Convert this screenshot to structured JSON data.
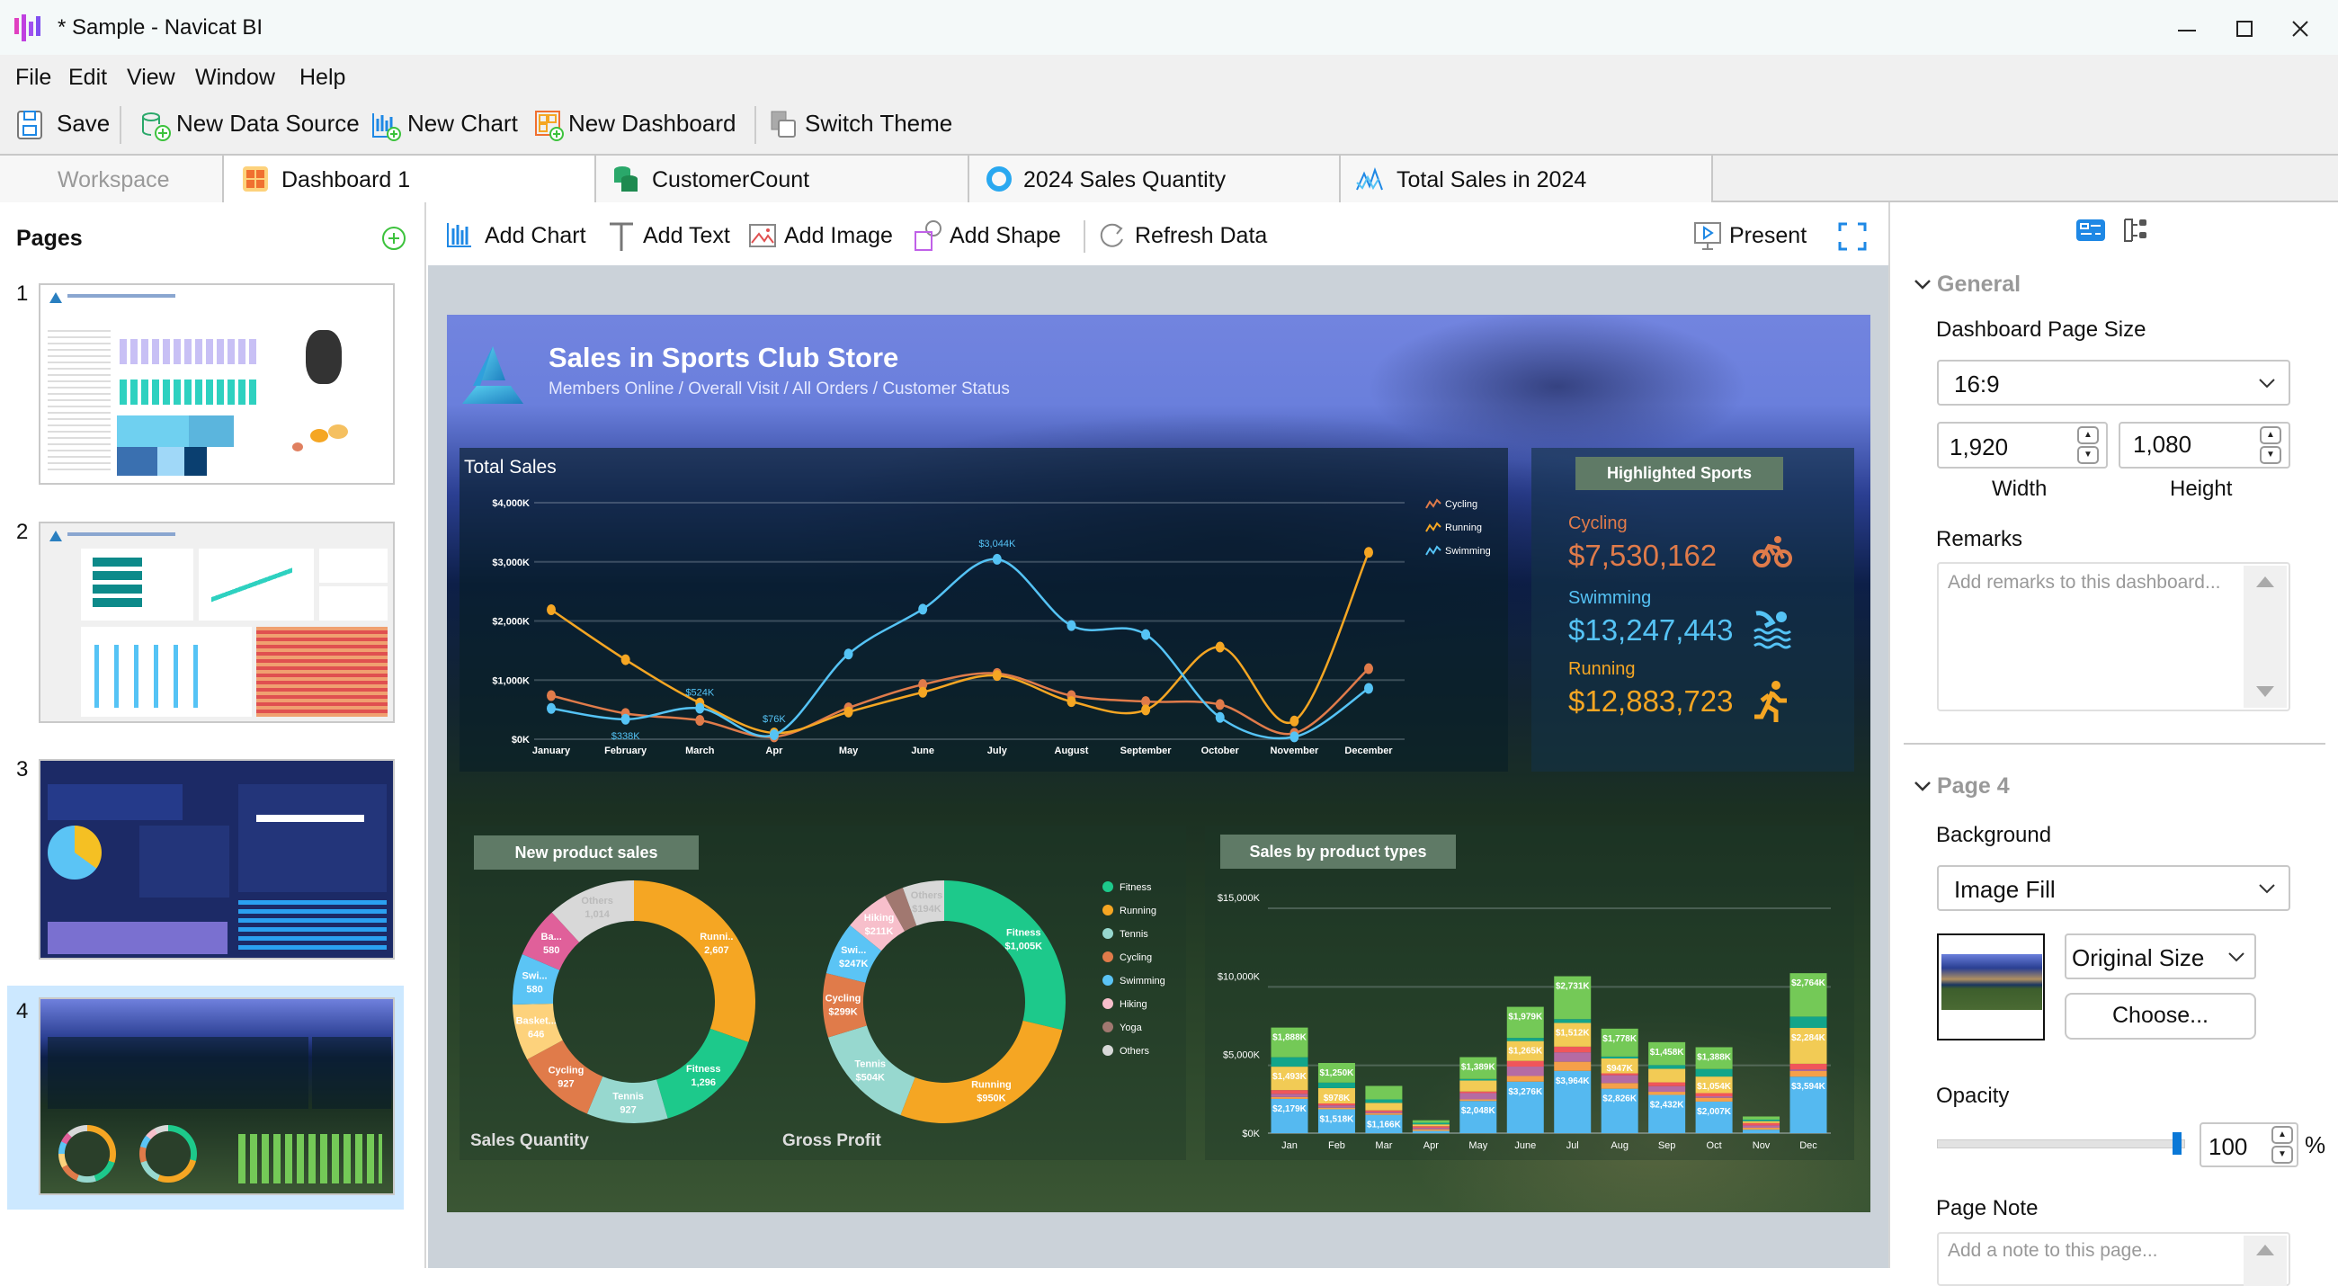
{
  "window": {
    "title": "* Sample - Navicat BI"
  },
  "menu": [
    "File",
    "Edit",
    "View",
    "Window",
    "Help"
  ],
  "toolbar": {
    "save": "Save",
    "new_data_source": "New Data Source",
    "new_chart": "New Chart",
    "new_dashboard": "New Dashboard",
    "switch_theme": "Switch Theme"
  },
  "tabs": [
    {
      "label": "Workspace",
      "icon": "none"
    },
    {
      "label": "Dashboard 1",
      "icon": "dashboard-icon",
      "active": true
    },
    {
      "label": "CustomerCount",
      "icon": "database-icon"
    },
    {
      "label": "2024 Sales Quantity",
      "icon": "donut-chart-icon"
    },
    {
      "label": "Total Sales in 2024",
      "icon": "line-chart-icon"
    }
  ],
  "pages": {
    "title": "Pages",
    "items": [
      "1",
      "2",
      "3",
      "4"
    ],
    "selected": "4"
  },
  "canvas_toolbar": {
    "add_chart": "Add Chart",
    "add_text": "Add Text",
    "add_image": "Add Image",
    "add_shape": "Add Shape",
    "refresh": "Refresh Data",
    "present": "Present"
  },
  "dashboard": {
    "title": "Sales in Sports Club Store",
    "subtitle": "Members Online / Overall Visit / All Orders / Customer Status",
    "highlight": {
      "title": "Highlighted Sports",
      "items": [
        {
          "label": "Cycling",
          "value": "$7,530,162",
          "color": "#e07b4a",
          "icon": "bicycle-icon"
        },
        {
          "label": "Swimming",
          "value": "$13,247,443",
          "color": "#55c3f5",
          "icon": "swimming-icon"
        },
        {
          "label": "Running",
          "value": "$12,883,723",
          "color": "#f5a623",
          "icon": "running-icon"
        }
      ]
    },
    "new_product_title": "New product sales",
    "bar_title": "Sales by product types"
  },
  "chart_data": [
    {
      "type": "line",
      "title": "Total Sales",
      "categories": [
        "January",
        "February",
        "March",
        "Apr",
        "May",
        "June",
        "July",
        "August",
        "September",
        "October",
        "November",
        "December"
      ],
      "yticks": [
        "$0K",
        "$1,000K",
        "$2,000K",
        "$3,000K",
        "$4,000K"
      ],
      "ylim": [
        0,
        4000
      ],
      "grid": true,
      "legend": "top-right",
      "series": [
        {
          "name": "Cycling",
          "color": "#e07b4a",
          "values": [
            738,
            435,
            319,
            40,
            531,
            925,
            1113,
            738,
            637,
            587,
            101,
            1193
          ]
        },
        {
          "name": "Running",
          "color": "#f5a623",
          "values": [
            2190,
            1345,
            612,
            106,
            460,
            794,
            1077,
            637,
            496,
            1558,
            308,
            3160
          ]
        },
        {
          "name": "Swimming",
          "color": "#55c3f5",
          "values": [
            521,
            338,
            524,
            76,
            1441,
            2200,
            3044,
            1922,
            1770,
            369,
            40,
            860
          ]
        }
      ],
      "data_labels": [
        {
          "series": "Swimming",
          "index": 1,
          "text": "$338K",
          "pos": "below"
        },
        {
          "series": "Swimming",
          "index": 2,
          "text": "$524K",
          "pos": "above"
        },
        {
          "series": "Swimming",
          "index": 3,
          "text": "$76K",
          "pos": "above"
        },
        {
          "series": "Swimming",
          "index": 6,
          "text": "$3,044K",
          "pos": "above"
        }
      ]
    },
    {
      "type": "pie",
      "title": "Sales Quantity",
      "slices": [
        {
          "label": "Runni..",
          "value": 2607,
          "text": "2,607",
          "color": "#f5a623"
        },
        {
          "label": "Fitness",
          "value": 1296,
          "text": "1,296",
          "color": "#1dc98b"
        },
        {
          "label": "Tennis",
          "value": 927,
          "text": "927",
          "color": "#97d8cf"
        },
        {
          "label": "Cycling",
          "value": 927,
          "text": "927",
          "color": "#e07b4a"
        },
        {
          "label": "Basket...",
          "value": 646,
          "text": "646",
          "color": "#fdd27c"
        },
        {
          "label": "Swi...",
          "value": 580,
          "text": "580",
          "color": "#5bc4f5"
        },
        {
          "label": "Ba...",
          "value": 580,
          "text": "580",
          "color": "#e0609a"
        },
        {
          "label": "Others",
          "value": 1014,
          "text": "1,014",
          "color": "#d8d8d8"
        }
      ]
    },
    {
      "type": "pie",
      "title": "Gross Profit",
      "legend": [
        "Fitness",
        "Running",
        "Tennis",
        "Cycling",
        "Swimming",
        "Hiking",
        "Yoga",
        "Others"
      ],
      "legend_colors": [
        "#1dc98b",
        "#f5a623",
        "#97d8cf",
        "#e07b4a",
        "#5bc4f5",
        "#f7bfcb",
        "#a17870",
        "#d8d8d8"
      ],
      "slices": [
        {
          "label": "Fitness",
          "value": 1005,
          "text": "$1,005K",
          "color": "#1dc98b"
        },
        {
          "label": "Running",
          "value": 950,
          "text": "$950K",
          "color": "#f5a623"
        },
        {
          "label": "Tennis",
          "value": 504,
          "text": "$504K",
          "color": "#97d8cf"
        },
        {
          "label": "Cycling",
          "value": 299,
          "text": "$299K",
          "color": "#e07b4a"
        },
        {
          "label": "Swi...",
          "value": 247,
          "text": "$247K",
          "color": "#5bc4f5"
        },
        {
          "label": "Hiking",
          "value": 211,
          "text": "$211K",
          "color": "#f7bfcb"
        },
        {
          "label": "",
          "value": 90,
          "text": "",
          "color": "#a17870"
        },
        {
          "label": "Others",
          "value": 194,
          "text": "$194K",
          "color": "#d8d8d8"
        }
      ]
    },
    {
      "type": "bar",
      "stacked": true,
      "categories": [
        "Jan",
        "Feb",
        "Mar",
        "Apr",
        "May",
        "June",
        "Jul",
        "Aug",
        "Sep",
        "Oct",
        "Nov",
        "Dec"
      ],
      "yticks": [
        "$0K",
        "$5,000K",
        "$10,000K",
        "$15,000K"
      ],
      "ylim": [
        0,
        15000
      ],
      "grid": true,
      "series": [
        {
          "color": "#55b9f0",
          "values": [
            2179,
            1518,
            1166,
            140,
            2048,
            3276,
            3964,
            2826,
            2432,
            2007,
            220,
            3594
          ],
          "data_labels": [
            "$2,179K",
            "$1,518K",
            "$1,166K",
            null,
            "$2,048K",
            "$3,276K",
            "$3,964K",
            "$2,826K",
            "$2,432K",
            "$2,007K",
            null,
            "$3,594K"
          ]
        },
        {
          "color": "#f5a04a",
          "values": [
            120,
            100,
            100,
            100,
            100,
            360,
            580,
            360,
            200,
            240,
            120,
            360
          ]
        },
        {
          "color": "#b56ba3",
          "values": [
            200,
            150,
            80,
            100,
            400,
            600,
            600,
            500,
            360,
            100,
            150,
            100
          ]
        },
        {
          "color": "#f0565a",
          "values": [
            240,
            120,
            100,
            100,
            100,
            360,
            360,
            120,
            240,
            200,
            150,
            360
          ]
        },
        {
          "color": "#f2cb55",
          "values": [
            1493,
            978,
            480,
            120,
            700,
            1265,
            1512,
            947,
            860,
            1054,
            120,
            2284
          ],
          "data_labels": [
            "$1,493K",
            "$978K",
            null,
            null,
            null,
            "$1,265K",
            "$1,512K",
            "$947K",
            null,
            "$1,054K",
            null,
            "$2,284K"
          ]
        },
        {
          "color": "#12a58a",
          "values": [
            600,
            350,
            220,
            100,
            100,
            200,
            240,
            120,
            240,
            480,
            100,
            720
          ]
        },
        {
          "color": "#74c957",
          "values": [
            1888,
            1250,
            860,
            160,
            1389,
            1979,
            2731,
            1778,
            1458,
            1388,
            200,
            2764
          ],
          "data_labels": [
            "$1,888K",
            "$1,250K",
            null,
            null,
            "$1,389K",
            "$1,979K",
            "$2,731K",
            "$1,778K",
            "$1,458K",
            "$1,388K",
            null,
            "$2,764K"
          ]
        }
      ]
    }
  ],
  "properties": {
    "general": "General",
    "page_size_label": "Dashboard Page Size",
    "page_size": "16:9",
    "width": "1,920",
    "height": "1,080",
    "width_label": "Width",
    "height_label": "Height",
    "remarks_label": "Remarks",
    "remarks_placeholder": "Add remarks to this dashboard...",
    "page_section": "Page 4",
    "background_label": "Background",
    "background": "Image Fill",
    "image_size": "Original Size",
    "choose": "Choose...",
    "opacity_label": "Opacity",
    "opacity": "100",
    "opacity_unit": "%",
    "page_note_label": "Page Note",
    "page_note_placeholder": "Add a note to this page..."
  },
  "colors": {
    "accent": "#1e88e5",
    "badge": "#5f7a66",
    "selected_page": "#cce8ff"
  }
}
